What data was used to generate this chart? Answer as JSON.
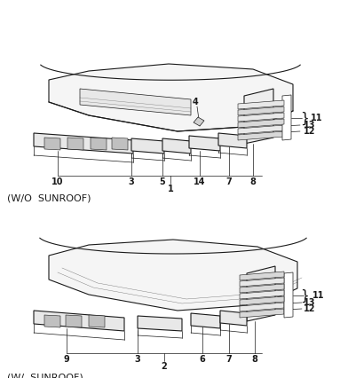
{
  "title_top": "(W/  SUNROOF)",
  "title_bottom": "(W/O  SUNROOF)",
  "bg_color": "#ffffff",
  "line_color": "#1a1a1a",
  "fig_width": 3.83,
  "fig_height": 4.26,
  "dpi": 100
}
